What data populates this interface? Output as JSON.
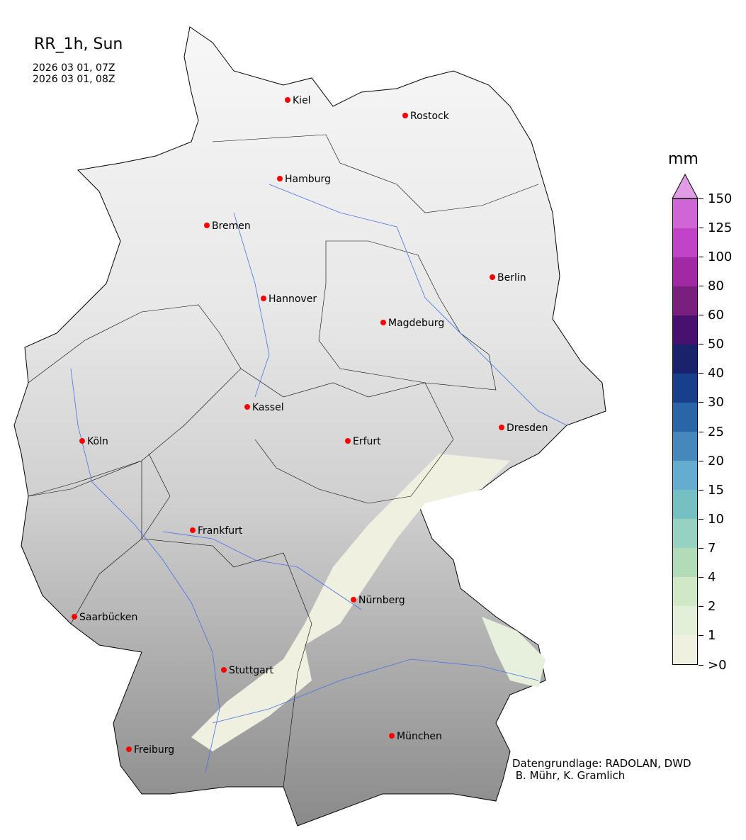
{
  "title": "RR_1h, Sun",
  "time_start": "2026 03 01, 07Z",
  "time_end": "2026 03 01, 08Z",
  "colorbar": {
    "unit": "mm",
    "ticks": [
      ">0",
      "1",
      "2",
      "4",
      "7",
      "10",
      "15",
      "20",
      "25",
      "30",
      "40",
      "50",
      "60",
      "80",
      "100",
      "125",
      "150"
    ],
    "colors": [
      "#f0f0e0",
      "#e2f0d9",
      "#d0e8c6",
      "#b2dbb8",
      "#96d1c1",
      "#76bfc2",
      "#64acd0",
      "#4788bc",
      "#2a65a8",
      "#173f8c",
      "#19226a",
      "#48116f",
      "#791f7d",
      "#a02aa3",
      "#c143c8",
      "#d066d5"
    ],
    "extend_color": "#e09de6"
  },
  "cities": [
    "Kiel",
    "Rostock",
    "Hamburg",
    "Bremen",
    "Berlin",
    "Hannover",
    "Magdeburg",
    "Kassel",
    "Köln",
    "Erfurt",
    "Dresden",
    "Frankfurt",
    "Nürnberg",
    "Saarbücken",
    "Stuttgart",
    "Freiburg",
    "München"
  ],
  "credit": "Datengrundlage: RADOLAN, DWD\n B. Mühr, K. Gramlich"
}
